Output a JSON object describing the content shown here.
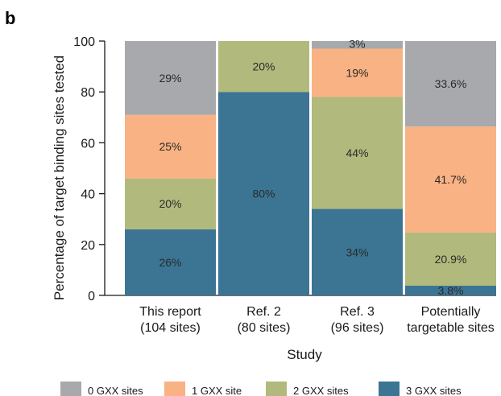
{
  "panel_label": "b",
  "chart_data": {
    "type": "bar",
    "stacked": true,
    "title": "",
    "xlabel": "Study",
    "ylabel": "Percentage of target binding sites tested",
    "ylim": [
      0,
      100
    ],
    "yticks": [
      0,
      20,
      40,
      60,
      80,
      100
    ],
    "categories": [
      [
        "This report",
        "(104 sites)"
      ],
      [
        "Ref. 2",
        "(80 sites)"
      ],
      [
        "Ref. 3",
        "(96 sites)"
      ],
      [
        "Potentially",
        "targetable sites"
      ]
    ],
    "series": [
      {
        "name": "3 GXX sites",
        "color": "#3b7593",
        "values": [
          26,
          80,
          34,
          3.8
        ],
        "labels": [
          "26%",
          "80%",
          "34%",
          "3.8%"
        ]
      },
      {
        "name": "2 GXX sites",
        "color": "#b2b97c",
        "values": [
          20,
          20,
          44,
          20.9
        ],
        "labels": [
          "20%",
          "20%",
          "44%",
          "20.9%"
        ]
      },
      {
        "name": "1 GXX site",
        "color": "#f9b283",
        "values": [
          25,
          0,
          19,
          41.7
        ],
        "labels": [
          "25%",
          "",
          "19%",
          "41.7%"
        ]
      },
      {
        "name": "0 GXX sites",
        "color": "#a7a9ac",
        "values": [
          29,
          0,
          3,
          33.6
        ],
        "labels": [
          "29%",
          "",
          "3%",
          "33.6%"
        ]
      }
    ],
    "legend": {
      "position": "bottom",
      "order": [
        "0 GXX sites",
        "1 GXX site",
        "2 GXX sites",
        "3 GXX sites"
      ]
    },
    "grid": false
  }
}
